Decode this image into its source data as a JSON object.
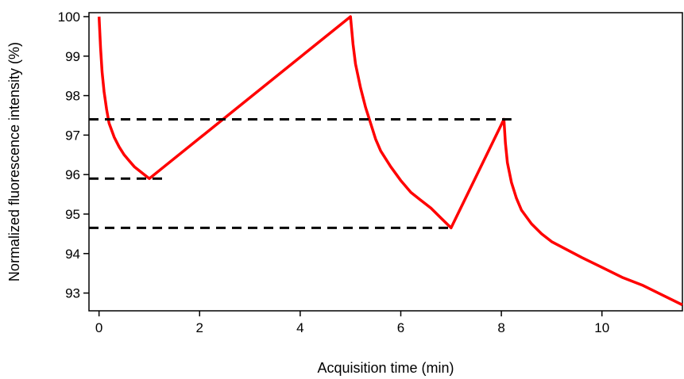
{
  "chart_data": {
    "type": "line",
    "title": "",
    "xlabel": "Acquisition time (min)",
    "ylabel": "Normalized fluorescence intensity (%)",
    "xlim": [
      -0.2,
      11.6
    ],
    "ylim": [
      92.55,
      100.1
    ],
    "xticks": [
      0,
      2,
      4,
      6,
      8,
      10
    ],
    "yticks": [
      93,
      94,
      95,
      96,
      97,
      98,
      99,
      100
    ],
    "grid": false,
    "legend": "none",
    "series": [
      {
        "color": "#ff0000",
        "style": "solid",
        "x": [
          0,
          0.03,
          0.06,
          0.1,
          0.15,
          0.2,
          0.3,
          0.4,
          0.5,
          0.6,
          0.7,
          0.8,
          0.9,
          1.0,
          5.0,
          5.05,
          5.1,
          5.2,
          5.3,
          5.4,
          5.5,
          5.6,
          5.8,
          6.0,
          6.2,
          6.4,
          6.6,
          6.8,
          7.0,
          8.05,
          8.08,
          8.12,
          8.2,
          8.3,
          8.4,
          8.6,
          8.8,
          9.0,
          9.3,
          9.6,
          10.0,
          10.4,
          10.8,
          11.2,
          11.6
        ],
        "y": [
          100,
          99.2,
          98.6,
          98.1,
          97.65,
          97.3,
          96.95,
          96.7,
          96.5,
          96.35,
          96.2,
          96.1,
          96.0,
          95.9,
          100,
          99.3,
          98.8,
          98.2,
          97.7,
          97.3,
          96.9,
          96.6,
          96.2,
          95.85,
          95.55,
          95.35,
          95.15,
          94.9,
          94.65,
          97.4,
          96.8,
          96.3,
          95.8,
          95.4,
          95.1,
          94.75,
          94.5,
          94.3,
          94.1,
          93.9,
          93.65,
          93.4,
          93.2,
          92.95,
          92.7
        ]
      },
      {
        "color": "#000000",
        "style": "dashed",
        "x": [
          -0.2,
          8.2
        ],
        "y": [
          97.4,
          97.4
        ]
      },
      {
        "color": "#000000",
        "style": "dashed",
        "x": [
          -0.2,
          1.3
        ],
        "y": [
          95.9,
          95.9
        ]
      },
      {
        "color": "#000000",
        "style": "dashed",
        "x": [
          -0.2,
          7.0
        ],
        "y": [
          94.65,
          94.65
        ]
      }
    ]
  }
}
